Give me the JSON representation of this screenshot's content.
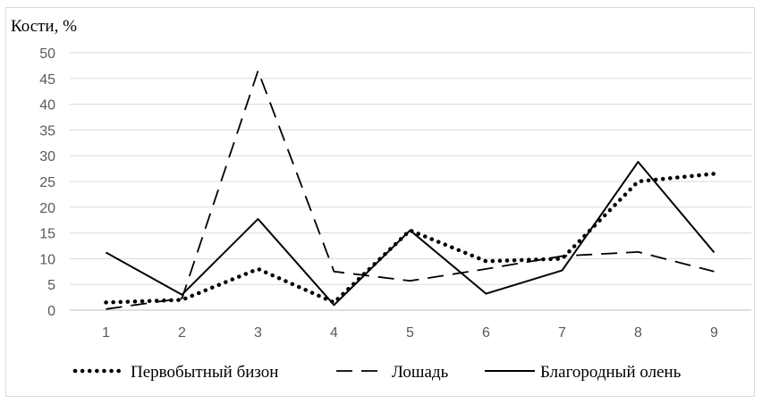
{
  "chart_data": {
    "type": "line",
    "title": "",
    "ylabel": "Кости, %",
    "xlabel": "",
    "x": [
      1,
      2,
      3,
      4,
      5,
      6,
      7,
      8,
      9
    ],
    "categories": [
      "1",
      "2",
      "3",
      "4",
      "5",
      "6",
      "7",
      "8",
      "9"
    ],
    "ylim": [
      0,
      50
    ],
    "yticks": [
      0,
      5,
      10,
      15,
      20,
      25,
      30,
      35,
      40,
      45,
      50
    ],
    "grid": true,
    "legend_position": "bottom",
    "series": [
      {
        "name": "Первобытный бизон",
        "style": "dotted",
        "color": "#000000",
        "values": [
          1.5,
          2,
          8,
          1.5,
          15.5,
          9.5,
          10,
          25,
          26.5
        ]
      },
      {
        "name": "Лошадь",
        "style": "dashed",
        "color": "#000000",
        "values": [
          0.2,
          2.3,
          46.5,
          7.5,
          5.7,
          8,
          10.5,
          11.3,
          7.5
        ]
      },
      {
        "name": "Благородный олень",
        "style": "solid",
        "color": "#000000",
        "values": [
          11.2,
          3,
          17.7,
          1,
          15.5,
          3.2,
          7.7,
          28.8,
          11.2
        ]
      }
    ]
  }
}
